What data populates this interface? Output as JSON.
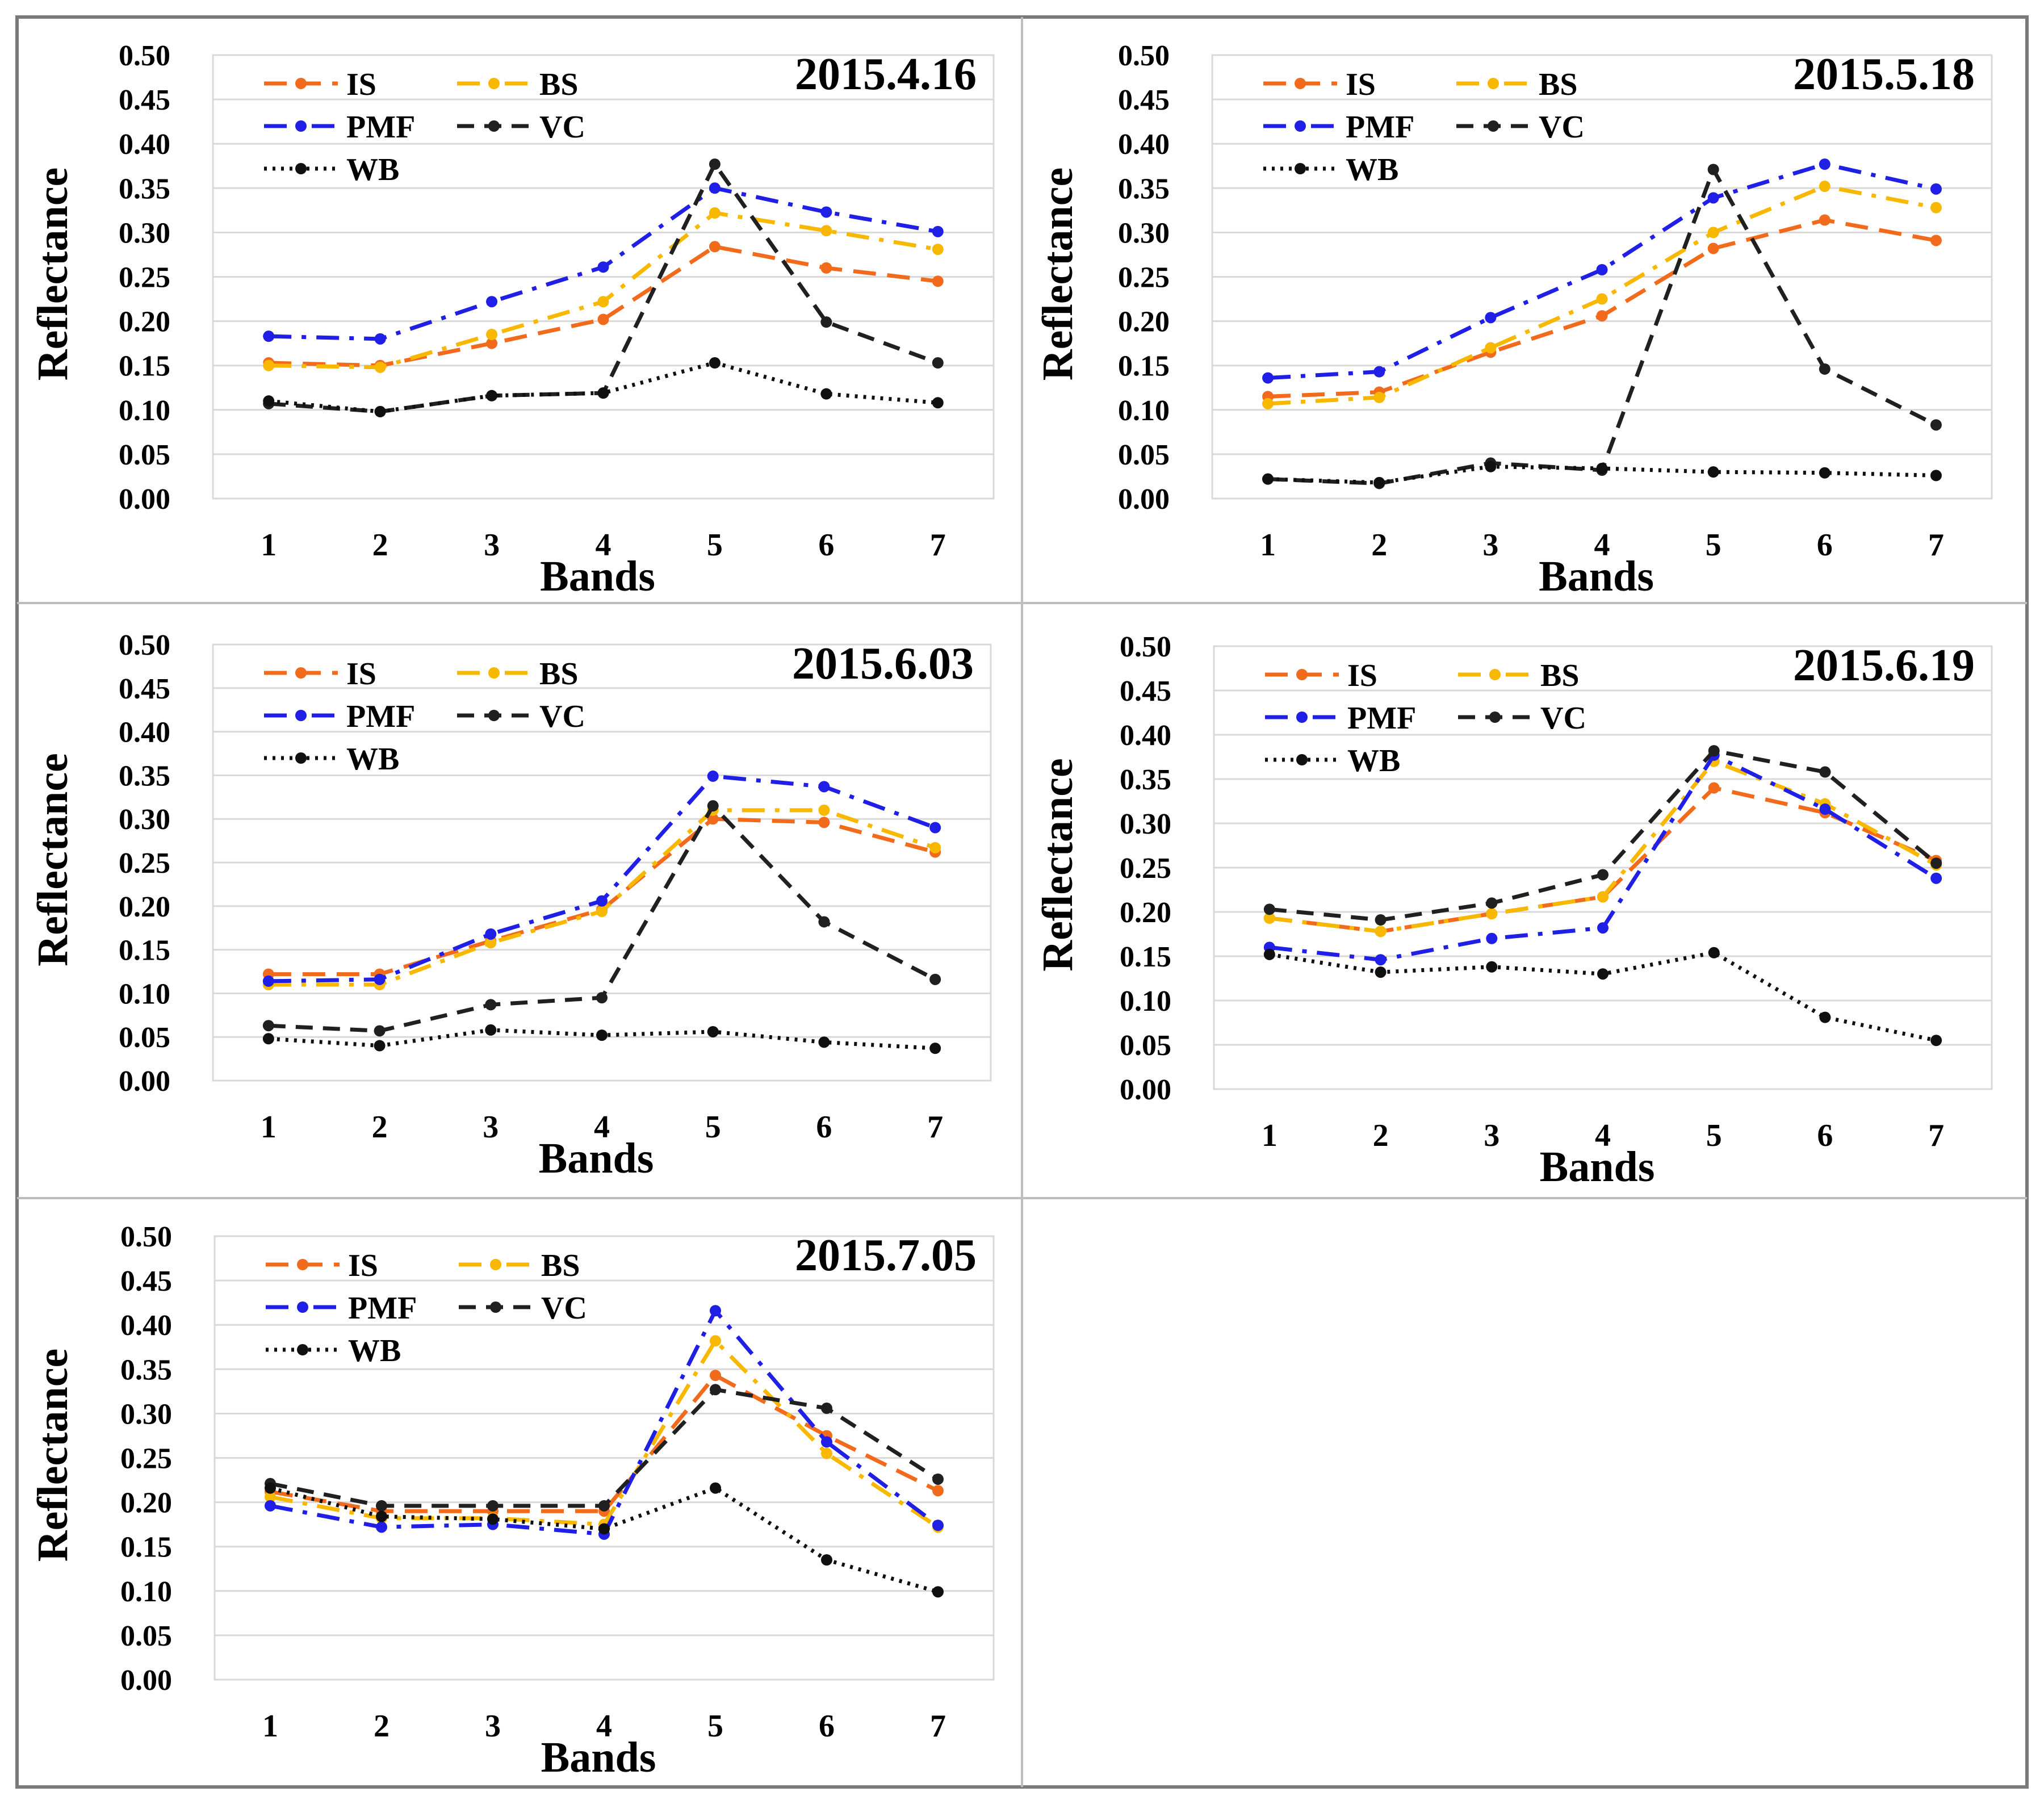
{
  "chart_data": [
    {
      "type": "line",
      "title": "2015.4.16",
      "xlabel": "Bands",
      "ylabel": "Reflectance",
      "x": [
        1,
        2,
        3,
        4,
        5,
        6,
        7
      ],
      "ylim": [
        0,
        0.5
      ],
      "yticks": [
        "0.00",
        "0.05",
        "0.10",
        "0.15",
        "0.20",
        "0.25",
        "0.30",
        "0.35",
        "0.40",
        "0.45",
        "0.50"
      ],
      "grid": true,
      "legend": "top-left",
      "series": [
        {
          "name": "IS",
          "values": [
            0.153,
            0.15,
            0.175,
            0.202,
            0.284,
            0.26,
            0.245
          ]
        },
        {
          "name": "BS",
          "values": [
            0.15,
            0.148,
            0.185,
            0.222,
            0.322,
            0.302,
            0.281
          ]
        },
        {
          "name": "PMF",
          "values": [
            0.183,
            0.18,
            0.222,
            0.261,
            0.35,
            0.323,
            0.301
          ]
        },
        {
          "name": "VC",
          "values": [
            0.107,
            0.098,
            0.116,
            0.119,
            0.377,
            0.199,
            0.153
          ]
        },
        {
          "name": "WB",
          "values": [
            0.11,
            0.098,
            0.116,
            0.119,
            0.153,
            0.118,
            0.108
          ]
        }
      ]
    },
    {
      "type": "line",
      "title": "2015.5.18",
      "xlabel": "Bands",
      "ylabel": "Reflectance",
      "x": [
        1,
        2,
        3,
        4,
        5,
        6,
        7
      ],
      "ylim": [
        0,
        0.5
      ],
      "yticks": [
        "0.00",
        "0.05",
        "0.10",
        "0.15",
        "0.20",
        "0.25",
        "0.30",
        "0.35",
        "0.40",
        "0.45",
        "0.50"
      ],
      "grid": true,
      "legend": "top-left",
      "series": [
        {
          "name": "IS",
          "values": [
            0.115,
            0.12,
            0.165,
            0.206,
            0.282,
            0.314,
            0.291
          ]
        },
        {
          "name": "BS",
          "values": [
            0.107,
            0.114,
            0.17,
            0.225,
            0.3,
            0.352,
            0.328
          ]
        },
        {
          "name": "PMF",
          "values": [
            0.136,
            0.143,
            0.204,
            0.258,
            0.339,
            0.377,
            0.349
          ]
        },
        {
          "name": "VC",
          "values": [
            0.022,
            0.017,
            0.04,
            0.032,
            0.371,
            0.146,
            0.083
          ]
        },
        {
          "name": "WB",
          "values": [
            0.022,
            0.018,
            0.036,
            0.034,
            0.03,
            0.029,
            0.026
          ]
        }
      ]
    },
    {
      "type": "line",
      "title": "2015.6.03",
      "xlabel": "Bands",
      "ylabel": "Reflectance",
      "x": [
        1,
        2,
        3,
        4,
        5,
        6,
        7
      ],
      "ylim": [
        0,
        0.5
      ],
      "yticks": [
        "0.00",
        "0.05",
        "0.10",
        "0.15",
        "0.20",
        "0.25",
        "0.30",
        "0.35",
        "0.40",
        "0.45",
        "0.50"
      ],
      "grid": true,
      "legend": "top-left",
      "series": [
        {
          "name": "IS",
          "values": [
            0.122,
            0.122,
            0.16,
            0.196,
            0.3,
            0.296,
            0.262
          ]
        },
        {
          "name": "BS",
          "values": [
            0.11,
            0.11,
            0.158,
            0.194,
            0.31,
            0.31,
            0.267
          ]
        },
        {
          "name": "PMF",
          "values": [
            0.114,
            0.116,
            0.168,
            0.206,
            0.349,
            0.337,
            0.29
          ]
        },
        {
          "name": "VC",
          "values": [
            0.063,
            0.057,
            0.087,
            0.095,
            0.315,
            0.182,
            0.116
          ]
        },
        {
          "name": "WB",
          "values": [
            0.048,
            0.04,
            0.058,
            0.052,
            0.056,
            0.044,
            0.037
          ]
        }
      ]
    },
    {
      "type": "line",
      "title": "2015.6.19",
      "xlabel": "Bands",
      "ylabel": "Reflectance",
      "x": [
        1,
        2,
        3,
        4,
        5,
        6,
        7
      ],
      "ylim": [
        0,
        0.5
      ],
      "yticks": [
        "0.00",
        "0.05",
        "0.10",
        "0.15",
        "0.20",
        "0.25",
        "0.30",
        "0.35",
        "0.40",
        "0.45",
        "0.50"
      ],
      "grid": true,
      "legend": "top-left",
      "series": [
        {
          "name": "IS",
          "values": [
            0.193,
            0.178,
            0.198,
            0.217,
            0.34,
            0.312,
            0.258
          ]
        },
        {
          "name": "BS",
          "values": [
            0.193,
            0.178,
            0.198,
            0.217,
            0.37,
            0.322,
            0.253
          ]
        },
        {
          "name": "PMF",
          "values": [
            0.16,
            0.146,
            0.17,
            0.182,
            0.377,
            0.316,
            0.238
          ]
        },
        {
          "name": "VC",
          "values": [
            0.203,
            0.191,
            0.21,
            0.242,
            0.382,
            0.358,
            0.255
          ]
        },
        {
          "name": "WB",
          "values": [
            0.152,
            0.132,
            0.138,
            0.13,
            0.154,
            0.081,
            0.055
          ]
        }
      ]
    },
    {
      "type": "line",
      "title": "2015.7.05",
      "xlabel": "Bands",
      "ylabel": "Reflectance",
      "x": [
        1,
        2,
        3,
        4,
        5,
        6,
        7
      ],
      "ylim": [
        0,
        0.5
      ],
      "yticks": [
        "0.00",
        "0.05",
        "0.10",
        "0.15",
        "0.20",
        "0.25",
        "0.30",
        "0.35",
        "0.40",
        "0.45",
        "0.50"
      ],
      "grid": true,
      "legend": "top-left",
      "series": [
        {
          "name": "IS",
          "values": [
            0.212,
            0.19,
            0.19,
            0.19,
            0.343,
            0.275,
            0.213
          ]
        },
        {
          "name": "BS",
          "values": [
            0.206,
            0.182,
            0.182,
            0.175,
            0.382,
            0.255,
            0.172
          ]
        },
        {
          "name": "PMF",
          "values": [
            0.196,
            0.172,
            0.175,
            0.164,
            0.416,
            0.268,
            0.174
          ]
        },
        {
          "name": "VC",
          "values": [
            0.221,
            0.196,
            0.196,
            0.196,
            0.327,
            0.306,
            0.226
          ]
        },
        {
          "name": "WB",
          "values": [
            0.216,
            0.184,
            0.181,
            0.17,
            0.216,
            0.135,
            0.099
          ]
        }
      ]
    }
  ],
  "series_colors": {
    "IS": "#F26B1D",
    "BS": "#F8B800",
    "PMF": "#1F1FE6",
    "VC": "#202020",
    "WB": "#101010"
  }
}
